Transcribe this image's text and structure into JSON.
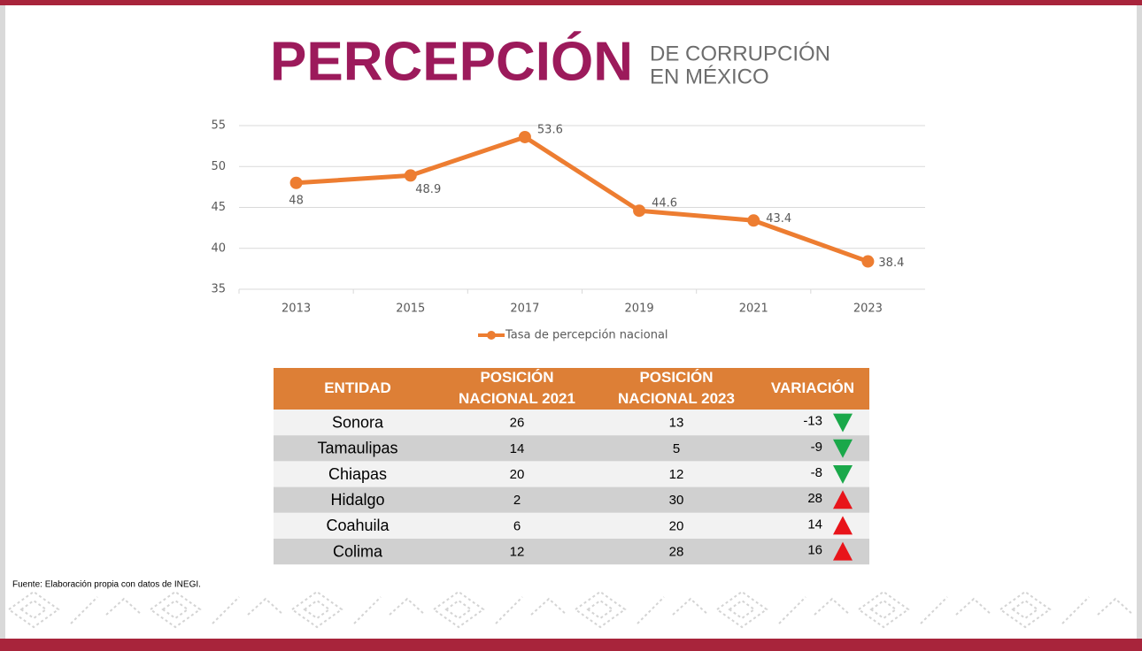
{
  "title": {
    "main": "PERCEPCIÓN",
    "sub": [
      "DE CORRUPCIÓN",
      "EN MÉXICO"
    ]
  },
  "chart_data": {
    "type": "line",
    "categories": [
      "2013",
      "2015",
      "2017",
      "2019",
      "2021",
      "2023"
    ],
    "series": [
      {
        "name": "Tasa de percepción nacional",
        "color": "#ed7d31",
        "values": [
          48,
          48.9,
          53.6,
          44.6,
          43.4,
          38.4
        ]
      }
    ],
    "ylim": [
      35,
      55
    ],
    "yticks": [
      35,
      40,
      45,
      50,
      55
    ],
    "grid": true,
    "legend": "bottom"
  },
  "table": {
    "header": [
      [
        "ENTIDAD"
      ],
      [
        "POSICIÓN",
        "NACIONAL 2021"
      ],
      [
        "POSICIÓN",
        "NACIONAL 2023"
      ],
      [
        "VARIACIÓN"
      ]
    ],
    "rows": [
      [
        "Sonora",
        26,
        13,
        -13
      ],
      [
        "Tamaulipas",
        14,
        5,
        -9
      ],
      [
        "Chiapas",
        20,
        12,
        -8
      ],
      [
        "Hidalgo",
        2,
        30,
        28
      ],
      [
        "Coahuila",
        6,
        20,
        14
      ],
      [
        "Colima",
        12,
        28,
        16
      ]
    ]
  },
  "source": "Fuente: Elaboración propia con datos de INEGI."
}
